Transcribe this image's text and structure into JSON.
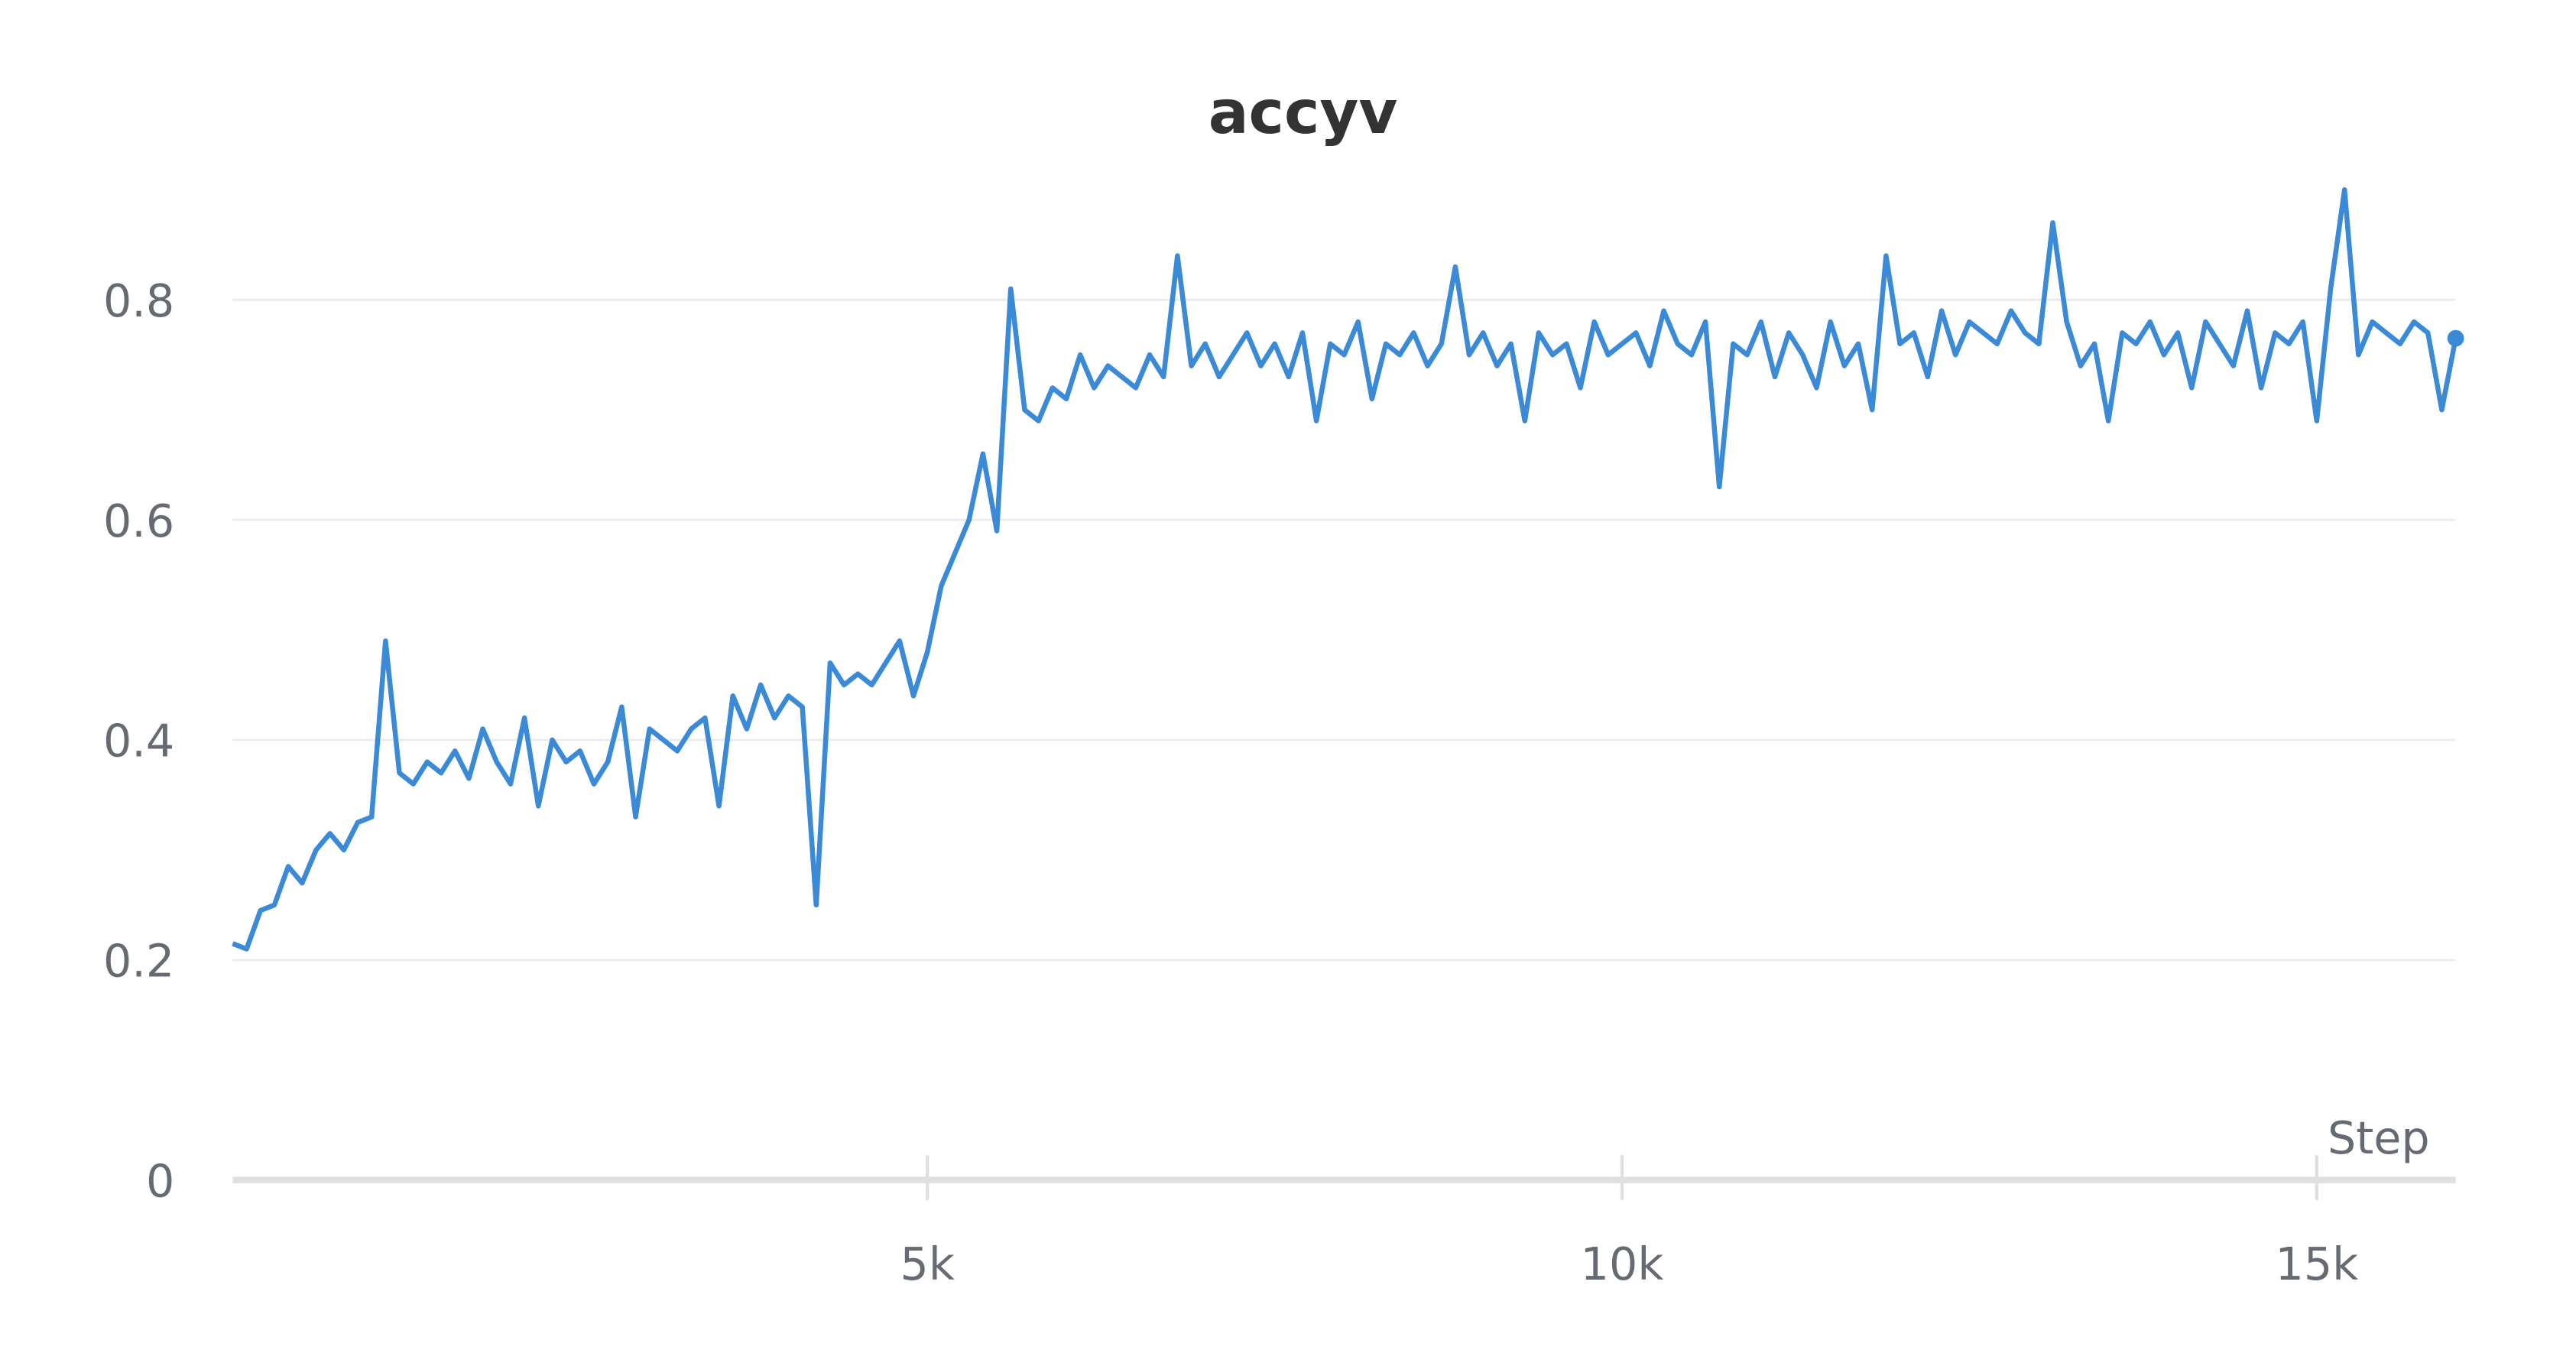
{
  "chart_data": {
    "type": "line",
    "title": "accyv",
    "x_label": "Step",
    "color": "#3a8ad8",
    "x": [
      0,
      100,
      200,
      300,
      400,
      500,
      600,
      700,
      800,
      900,
      1000,
      1100,
      1200,
      1300,
      1400,
      1500,
      1600,
      1700,
      1800,
      1900,
      2000,
      2100,
      2200,
      2300,
      2400,
      2500,
      2600,
      2700,
      2800,
      2900,
      3000,
      3100,
      3200,
      3300,
      3400,
      3500,
      3600,
      3700,
      3800,
      3900,
      4000,
      4100,
      4200,
      4300,
      4400,
      4500,
      4600,
      4700,
      4800,
      4900,
      5000,
      5100,
      5200,
      5300,
      5400,
      5500,
      5600,
      5700,
      5800,
      5900,
      6000,
      6100,
      6200,
      6300,
      6400,
      6500,
      6600,
      6700,
      6800,
      6900,
      7000,
      7100,
      7200,
      7300,
      7400,
      7500,
      7600,
      7700,
      7800,
      7900,
      8000,
      8100,
      8200,
      8300,
      8400,
      8500,
      8600,
      8700,
      8800,
      8900,
      9000,
      9100,
      9200,
      9300,
      9400,
      9500,
      9600,
      9700,
      9800,
      9900,
      10000,
      10100,
      10200,
      10300,
      10400,
      10500,
      10600,
      10700,
      10800,
      10900,
      11000,
      11100,
      11200,
      11300,
      11400,
      11500,
      11600,
      11700,
      11800,
      11900,
      12000,
      12100,
      12200,
      12300,
      12400,
      12500,
      12600,
      12700,
      12800,
      12900,
      13000,
      13100,
      13200,
      13300,
      13400,
      13500,
      13600,
      13700,
      13800,
      13900,
      14000,
      14100,
      14200,
      14300,
      14400,
      14500,
      14600,
      14700,
      14800,
      14900,
      15000,
      15100,
      15200,
      15300,
      15400,
      15500,
      15600,
      15700,
      15800,
      15900,
      16000
    ],
    "values": [
      0.215,
      0.21,
      0.245,
      0.25,
      0.285,
      0.27,
      0.3,
      0.315,
      0.3,
      0.325,
      0.33,
      0.49,
      0.37,
      0.36,
      0.38,
      0.37,
      0.39,
      0.365,
      0.41,
      0.38,
      0.36,
      0.42,
      0.34,
      0.4,
      0.38,
      0.39,
      0.36,
      0.38,
      0.43,
      0.33,
      0.41,
      0.4,
      0.39,
      0.41,
      0.42,
      0.34,
      0.44,
      0.41,
      0.45,
      0.42,
      0.44,
      0.43,
      0.25,
      0.47,
      0.45,
      0.46,
      0.45,
      0.47,
      0.49,
      0.44,
      0.48,
      0.54,
      0.57,
      0.6,
      0.66,
      0.59,
      0.81,
      0.7,
      0.69,
      0.72,
      0.71,
      0.75,
      0.72,
      0.74,
      0.73,
      0.72,
      0.75,
      0.73,
      0.84,
      0.74,
      0.76,
      0.73,
      0.75,
      0.77,
      0.74,
      0.76,
      0.73,
      0.77,
      0.69,
      0.76,
      0.75,
      0.78,
      0.71,
      0.76,
      0.75,
      0.77,
      0.74,
      0.76,
      0.83,
      0.75,
      0.77,
      0.74,
      0.76,
      0.69,
      0.77,
      0.75,
      0.76,
      0.72,
      0.78,
      0.75,
      0.76,
      0.77,
      0.74,
      0.79,
      0.76,
      0.75,
      0.78,
      0.63,
      0.76,
      0.75,
      0.78,
      0.73,
      0.77,
      0.75,
      0.72,
      0.78,
      0.74,
      0.76,
      0.7,
      0.84,
      0.76,
      0.77,
      0.73,
      0.79,
      0.75,
      0.78,
      0.77,
      0.76,
      0.79,
      0.77,
      0.76,
      0.87,
      0.78,
      0.74,
      0.76,
      0.69,
      0.77,
      0.76,
      0.78,
      0.75,
      0.77,
      0.72,
      0.78,
      0.76,
      0.74,
      0.79,
      0.72,
      0.77,
      0.76,
      0.78,
      0.69,
      0.81,
      0.9,
      0.75,
      0.78,
      0.77,
      0.76,
      0.78,
      0.77,
      0.7,
      0.765
    ],
    "xlim": [
      0,
      16000
    ],
    "ylim": [
      0,
      0.92
    ],
    "xticks": [
      {
        "value": 5000,
        "label": "5k"
      },
      {
        "value": 10000,
        "label": "10k"
      },
      {
        "value": 15000,
        "label": "15k"
      }
    ],
    "yticks": [
      0,
      0.2,
      0.4,
      0.6,
      0.8
    ],
    "grid": true
  }
}
